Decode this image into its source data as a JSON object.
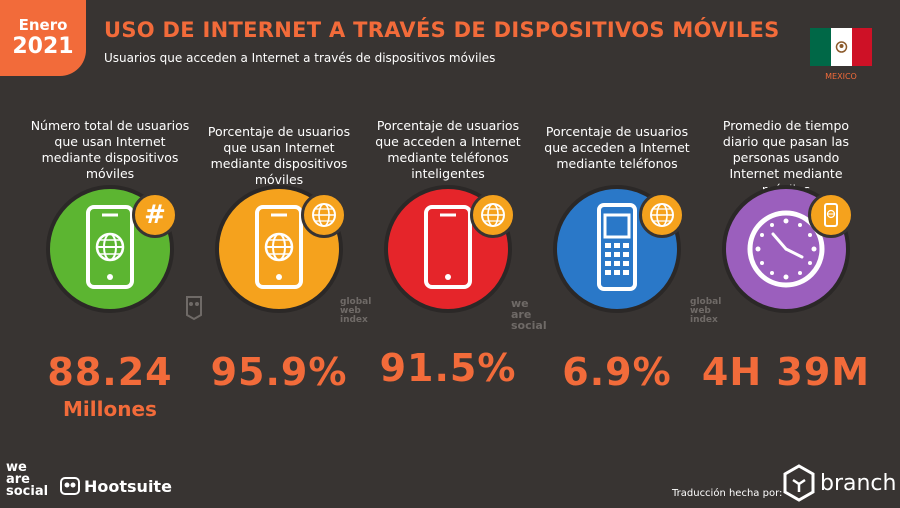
{
  "header": {
    "month": "Enero",
    "year": "2021",
    "title": "USO DE INTERNET A TRAVÉS DE DISPOSITIVOS MÓVILES",
    "subtitle": "Usuarios que acceden a Internet a través de dispositivos móviles",
    "country": "MEXICO"
  },
  "colors": {
    "accent": "#f26b3a",
    "background": "#383432",
    "green": "#5cb531",
    "orange": "#f5a21d",
    "red": "#e5252a",
    "blue": "#2a78c8",
    "purple": "#9b5fbd"
  },
  "stats": [
    {
      "label": "Número total de usuarios que usan Internet mediante dispositivos móviles",
      "value": "88.24",
      "unit": "Millones",
      "icon": "smartphone-globe-icon"
    },
    {
      "label": "Porcentaje de usuarios que usan Internet mediante dispositivos móviles",
      "value": "95.9%",
      "icon": "smartphone-globe-icon"
    },
    {
      "label": "Porcentaje de usuarios que acceden a Internet mediante teléfonos inteligentes",
      "value": "91.5%",
      "icon": "smartphone-icon"
    },
    {
      "label": "Porcentaje de usuarios que acceden a Internet mediante teléfonos",
      "value": "6.9%",
      "icon": "feature-phone-icon"
    },
    {
      "label": "Promedio de tiempo diario que pasan las personas usando Internet mediante móviles",
      "value": "4H 39M",
      "icon": "clock-icon"
    }
  ],
  "watermarks": {
    "was": "we are social",
    "gwi": "global web index"
  },
  "footer": {
    "was_logo": "we are social",
    "hootsuite": "Hootsuite",
    "translation": "Traducción hecha por:",
    "branch": "branch"
  }
}
